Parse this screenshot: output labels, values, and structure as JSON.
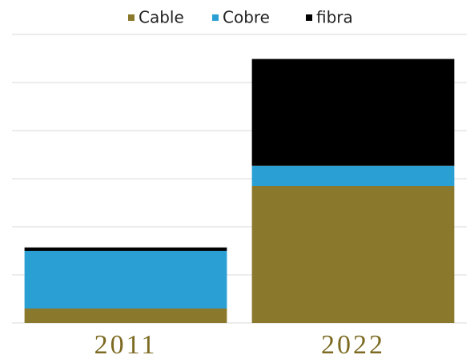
{
  "chart_data": {
    "type": "stacked_bar",
    "categories": [
      "2011",
      "2022"
    ],
    "series": [
      {
        "name": "Cable",
        "color": "#8a782c",
        "values": [
          0.3,
          2.85
        ]
      },
      {
        "name": "Cobre",
        "color": "#2a9fd4",
        "values": [
          1.2,
          0.42
        ]
      },
      {
        "name": "fibra",
        "color": "#000000",
        "values": [
          0.07,
          2.22
        ]
      }
    ],
    "ylim": [
      0,
      6
    ],
    "yticks": [
      0,
      1,
      2,
      3,
      4,
      5,
      6
    ],
    "grid": true,
    "legend": "top"
  }
}
